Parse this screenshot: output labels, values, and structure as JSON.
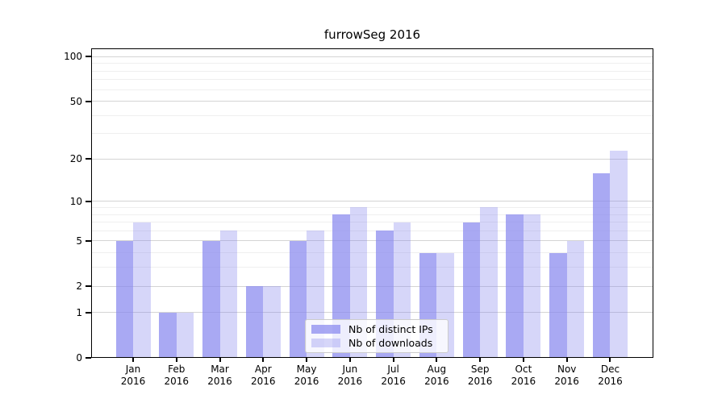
{
  "chart_data": {
    "type": "bar",
    "title": "furrowSeg 2016",
    "categories": [
      "Jan",
      "Feb",
      "Mar",
      "Apr",
      "May",
      "Jun",
      "Jul",
      "Aug",
      "Sep",
      "Oct",
      "Nov",
      "Dec"
    ],
    "x_year_label": "2016",
    "series": [
      {
        "name": "Nb of distinct IPs",
        "color": "#8888ee",
        "alpha": 0.72,
        "values": [
          5,
          1,
          5,
          2,
          5,
          8,
          6,
          4,
          7,
          8,
          4,
          16
        ]
      },
      {
        "name": "Nb of downloads",
        "color": "#8888ee",
        "alpha": 0.34,
        "values": [
          7,
          1,
          6,
          2,
          6,
          9,
          7,
          4,
          9,
          8,
          5,
          23
        ]
      }
    ],
    "xlabel": "",
    "ylabel": "",
    "y_axis": {
      "scale": "log1p",
      "major_ticks": [
        0,
        1,
        2,
        5,
        10,
        20,
        50,
        100
      ],
      "minor_ticks": [
        3,
        4,
        6,
        7,
        8,
        9,
        30,
        40,
        60,
        70,
        80,
        90
      ],
      "ylim": [
        0,
        113.5
      ]
    },
    "grid": true,
    "legend_position": "lower center",
    "colors": {
      "major_gridline": "#d4d4d4",
      "minor_gridline": "#efefef",
      "spine": "#000000"
    }
  }
}
